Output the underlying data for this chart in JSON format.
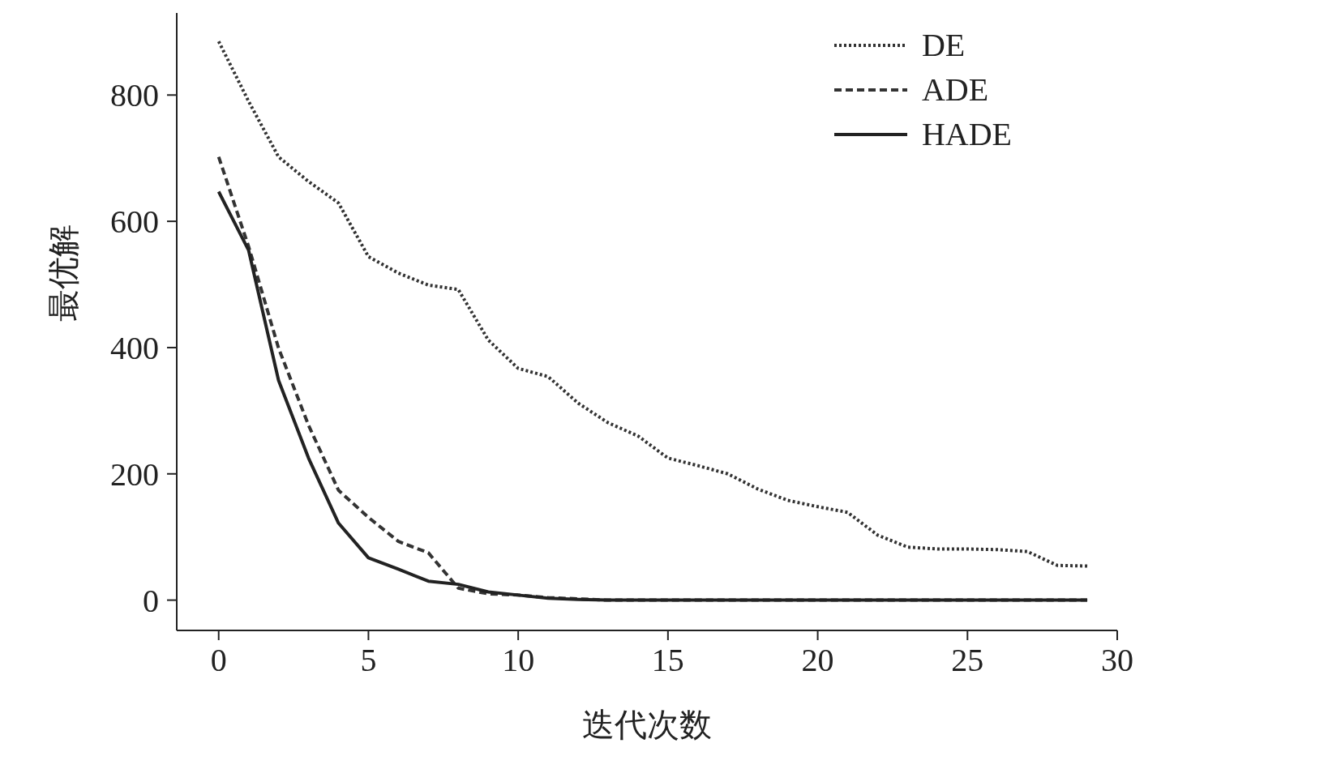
{
  "chart_data": {
    "type": "line",
    "xlabel": "迭代次数",
    "ylabel": "最优解",
    "xlim": [
      -1.4,
      30
    ],
    "ylim": [
      -48,
      930
    ],
    "xticks": [
      0,
      5,
      10,
      15,
      20,
      25,
      30
    ],
    "yticks": [
      0,
      200,
      400,
      600,
      800
    ],
    "grid": false,
    "legend": "top right",
    "marker": "none",
    "x": [
      0,
      1,
      2,
      3,
      4,
      5,
      6,
      7,
      8,
      9,
      10,
      11,
      12,
      13,
      14,
      15,
      16,
      17,
      18,
      19,
      20,
      21,
      22,
      23,
      24,
      25,
      26,
      27,
      28,
      29
    ],
    "series": [
      {
        "name": "DE",
        "color": "#333333",
        "line_style": "dotted",
        "values": [
          885,
          790,
          702,
          663,
          629,
          544,
          518,
          499,
          492,
          412,
          367,
          354,
          312,
          281,
          260,
          225,
          213,
          200,
          176,
          158,
          148,
          139,
          103,
          84,
          81,
          81,
          80,
          77,
          55,
          54
        ]
      },
      {
        "name": "ADE",
        "color": "#333333",
        "line_style": "dashed",
        "values": [
          702,
          560,
          399,
          277,
          174,
          131,
          93,
          75,
          19,
          10,
          8,
          4,
          2,
          0,
          0,
          0,
          0,
          0,
          0,
          0,
          0,
          0,
          0,
          0,
          0,
          0,
          0,
          0,
          0,
          0
        ]
      },
      {
        "name": "HADE",
        "color": "#222222",
        "line_style": "solid",
        "values": [
          647,
          554,
          348,
          225,
          122,
          67,
          49,
          30,
          25,
          13,
          8,
          3,
          1,
          0,
          0,
          0,
          0,
          0,
          0,
          0,
          0,
          0,
          0,
          0,
          0,
          0,
          0,
          0,
          0,
          0
        ]
      }
    ]
  }
}
